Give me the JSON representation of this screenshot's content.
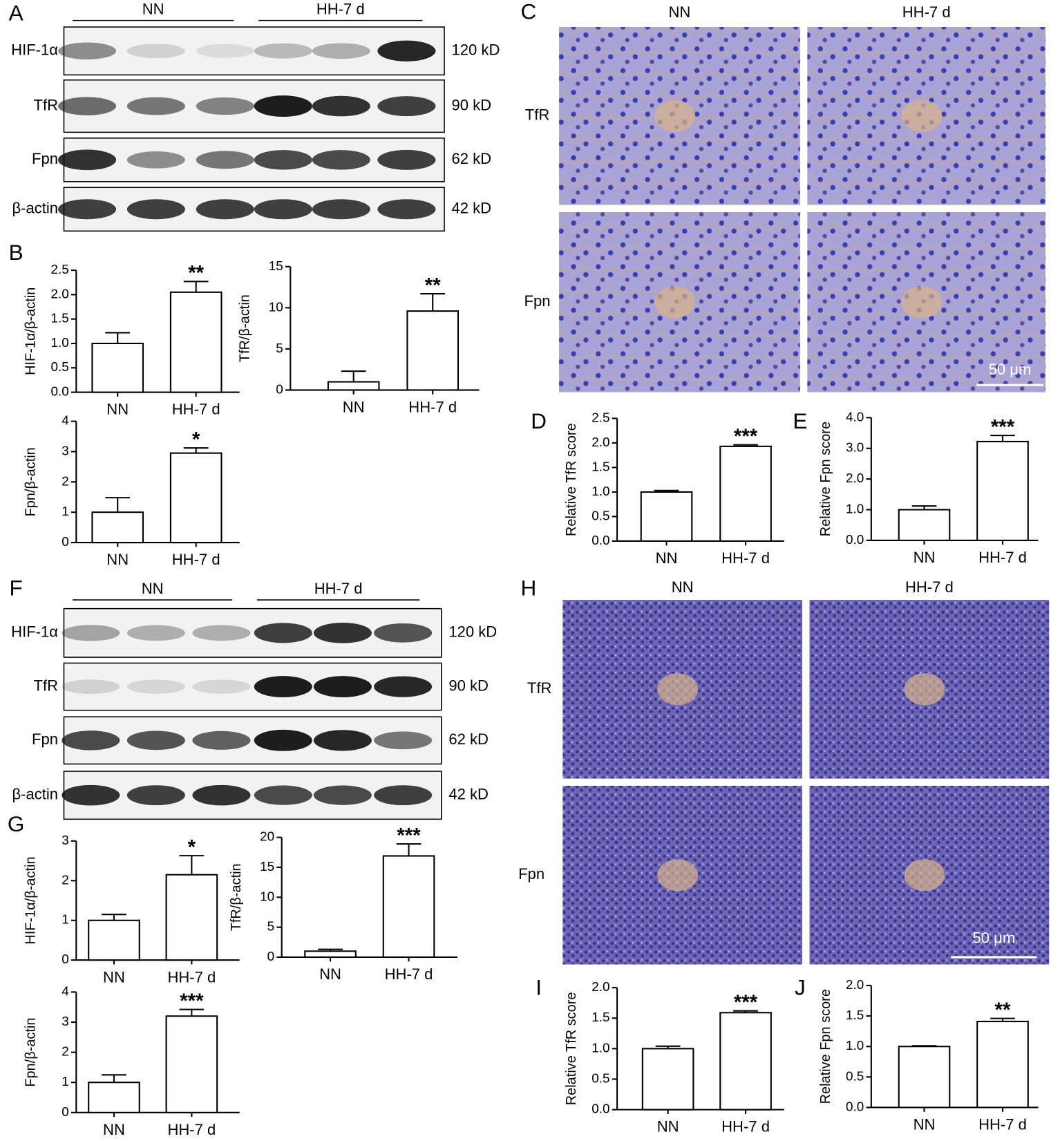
{
  "panels": [
    "A",
    "B",
    "C",
    "D",
    "E",
    "F",
    "G",
    "H",
    "I",
    "J"
  ],
  "blots": [
    {
      "groups": [
        "NN",
        "HH-7 d"
      ],
      "rows": [
        {
          "protein": "HIF-1α",
          "size": "120 kD"
        },
        {
          "protein": "TfR",
          "size": "90 kD"
        },
        {
          "protein": "Fpn",
          "size": "62 kD"
        },
        {
          "protein": "β-actin",
          "size": "42 kD"
        }
      ]
    },
    {
      "groups": [
        "NN",
        "HH-7 d"
      ],
      "rows": [
        {
          "protein": "HIF-1α",
          "size": "120 kD"
        },
        {
          "protein": "TfR",
          "size": "90 kD"
        },
        {
          "protein": "Fpn",
          "size": "62 kD"
        },
        {
          "protein": "β-actin",
          "size": "42 kD"
        }
      ]
    }
  ],
  "ihc": [
    {
      "columns": [
        "NN",
        "HH-7 d"
      ],
      "rows": [
        "TfR",
        "Fpn"
      ],
      "scale": "50 μm"
    },
    {
      "columns": [
        "NN",
        "HH-7 d"
      ],
      "rows": [
        "TfR",
        "Fpn"
      ],
      "scale": "50 μm"
    }
  ],
  "chart_data": [
    {
      "type": "bar",
      "y_label": "HIF-1α/β-actin",
      "categories": [
        "NN",
        "HH-7 d"
      ],
      "values": [
        1.0,
        2.05
      ],
      "errors": [
        0.22,
        0.22
      ],
      "significance": "**",
      "ylim": [
        0,
        2.5
      ],
      "yticks": [
        {
          "value": 0,
          "label": "0.0"
        },
        {
          "value": 0.5,
          "label": "0.5"
        },
        {
          "value": 1,
          "label": "1.0"
        },
        {
          "value": 1.5,
          "label": "1.5"
        },
        {
          "value": 2,
          "label": "2.0"
        },
        {
          "value": 2.5,
          "label": "2.5"
        }
      ]
    },
    {
      "type": "bar",
      "y_label": "TfR/β-actin",
      "categories": [
        "NN",
        "HH-7 d"
      ],
      "values": [
        1.0,
        9.6
      ],
      "errors": [
        1.3,
        2.1
      ],
      "significance": "**",
      "ylim": [
        0,
        15
      ],
      "yticks": [
        0,
        5,
        10,
        15
      ]
    },
    {
      "type": "bar",
      "y_label": "Fpn/β-actin",
      "categories": [
        "NN",
        "HH-7 d"
      ],
      "values": [
        1.0,
        2.95
      ],
      "errors": [
        0.48,
        0.17
      ],
      "significance": "*",
      "ylim": [
        0,
        4
      ],
      "yticks": [
        0,
        1,
        2,
        3,
        4
      ]
    },
    {
      "type": "bar",
      "y_label": "Relative TfR score",
      "categories": [
        "NN",
        "HH-7 d"
      ],
      "values": [
        1.0,
        1.93
      ],
      "errors": [
        0.03,
        0.03
      ],
      "significance": "***",
      "ylim": [
        0,
        2.5
      ],
      "yticks": [
        {
          "value": 0,
          "label": "0.0"
        },
        {
          "value": 0.5,
          "label": "0.5"
        },
        {
          "value": 1,
          "label": "1.0"
        },
        {
          "value": 1.5,
          "label": "1.5"
        },
        {
          "value": 2,
          "label": "2.0"
        },
        {
          "value": 2.5,
          "label": "2.5"
        }
      ]
    },
    {
      "type": "bar",
      "y_label": "Relative Fpn score",
      "categories": [
        "NN",
        "HH-7 d"
      ],
      "values": [
        1.0,
        3.22
      ],
      "errors": [
        0.12,
        0.2
      ],
      "significance": "***",
      "ylim": [
        0,
        4
      ],
      "yticks": [
        {
          "value": 0,
          "label": "0.0"
        },
        {
          "value": 1,
          "label": "1.0"
        },
        {
          "value": 2,
          "label": "2.0"
        },
        {
          "value": 3,
          "label": "3.0"
        },
        {
          "value": 4,
          "label": "4.0"
        }
      ]
    },
    {
      "type": "bar",
      "y_label": "HIF-1α/β-actin",
      "categories": [
        "NN",
        "HH-7 d"
      ],
      "values": [
        1.0,
        2.15
      ],
      "errors": [
        0.15,
        0.48
      ],
      "significance": "*",
      "ylim": [
        0,
        3
      ],
      "yticks": [
        0,
        1,
        2,
        3
      ]
    },
    {
      "type": "bar",
      "y_label": "TfR/β-actin",
      "categories": [
        "NN",
        "HH-7 d"
      ],
      "values": [
        1.0,
        16.9
      ],
      "errors": [
        0.3,
        2.0
      ],
      "significance": "***",
      "ylim": [
        0,
        20
      ],
      "yticks": [
        0,
        5,
        10,
        15,
        20
      ]
    },
    {
      "type": "bar",
      "y_label": "Fpn/β-actin",
      "categories": [
        "NN",
        "HH-7 d"
      ],
      "values": [
        1.0,
        3.2
      ],
      "errors": [
        0.25,
        0.22
      ],
      "significance": "***",
      "ylim": [
        0,
        4
      ],
      "yticks": [
        0,
        1,
        2,
        3,
        4
      ]
    },
    {
      "type": "bar",
      "y_label": "Relative TfR score",
      "categories": [
        "NN",
        "HH-7 d"
      ],
      "values": [
        1.0,
        1.59
      ],
      "errors": [
        0.04,
        0.03
      ],
      "significance": "***",
      "ylim": [
        0,
        2
      ],
      "yticks": [
        {
          "value": 0,
          "label": "0.0"
        },
        {
          "value": 0.5,
          "label": "0.5"
        },
        {
          "value": 1,
          "label": "1.0"
        },
        {
          "value": 1.5,
          "label": "1.5"
        },
        {
          "value": 2,
          "label": "2.0"
        }
      ]
    },
    {
      "type": "bar",
      "y_label": "Relative Fpn score",
      "categories": [
        "NN",
        "HH-7 d"
      ],
      "values": [
        1.0,
        1.41
      ],
      "errors": [
        0.01,
        0.05
      ],
      "significance": "**",
      "ylim": [
        0,
        2
      ],
      "yticks": [
        {
          "value": 0,
          "label": "0.0"
        },
        {
          "value": 0.5,
          "label": "0.5"
        },
        {
          "value": 1,
          "label": "1.0"
        },
        {
          "value": 1.5,
          "label": "1.5"
        },
        {
          "value": 2,
          "label": "2.0"
        }
      ]
    }
  ]
}
